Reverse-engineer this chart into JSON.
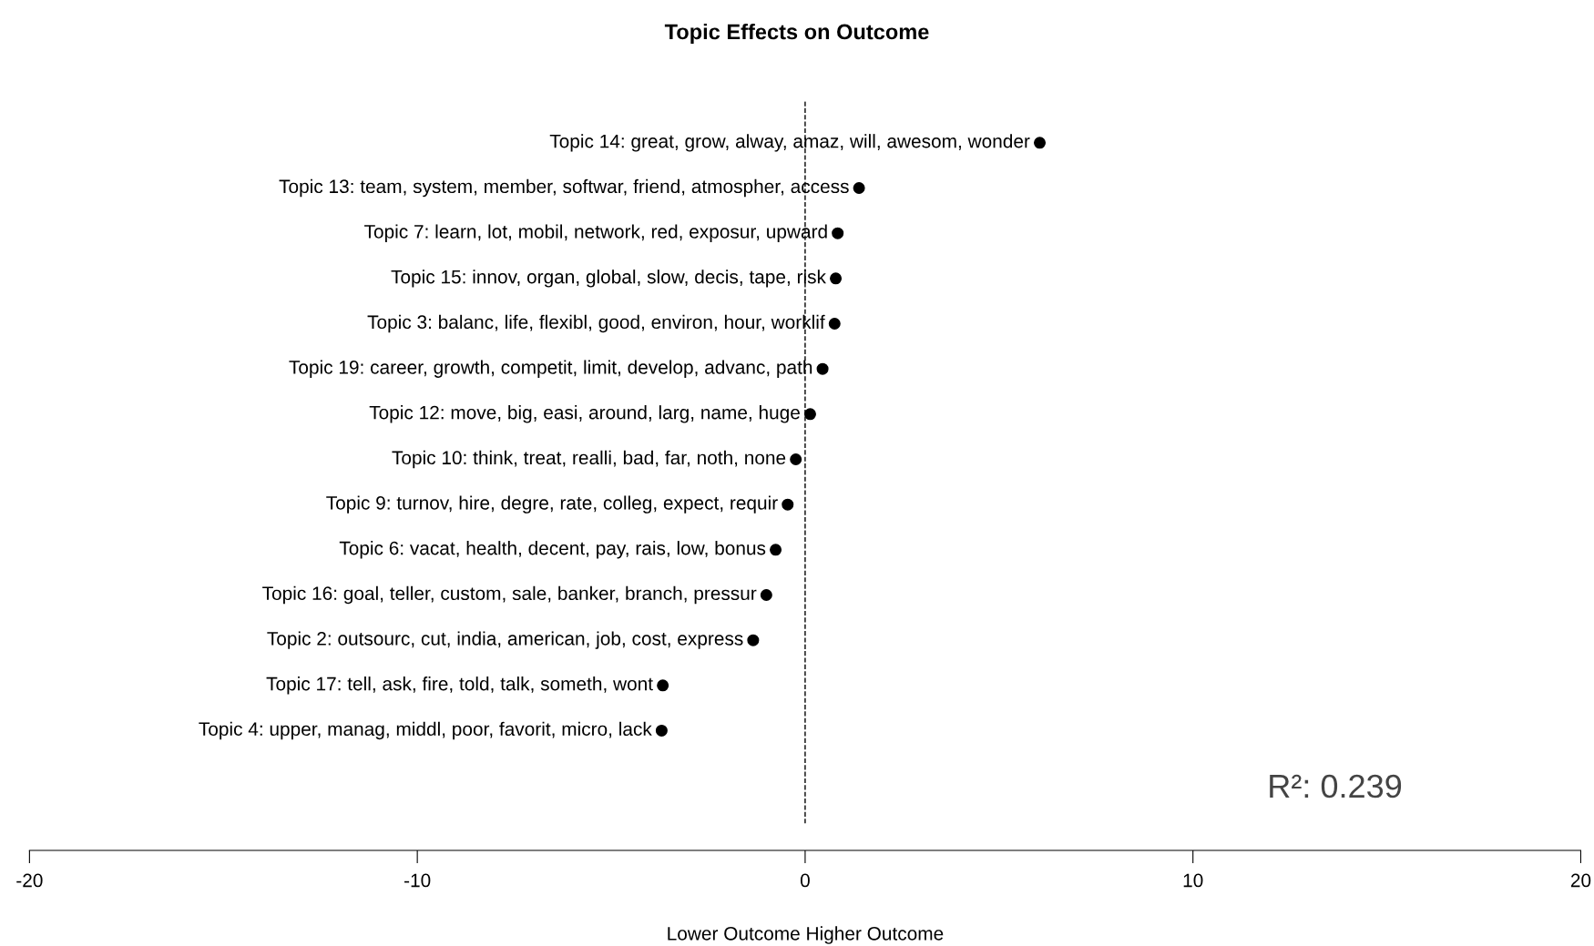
{
  "chart_data": {
    "type": "scatter",
    "orientation": "horizontal",
    "title": "Topic Effects on Outcome",
    "xlabel": "Lower Outcome Higher Outcome",
    "categories": [
      "Topic 14: great, grow, alway, amaz, will, awesom, wonder",
      "Topic 13: team, system, member, softwar, friend, atmospher, access",
      "Topic 7: learn, lot, mobil, network, red, exposur, upward",
      "Topic 15: innov, organ, global, slow, decis, tape, risk",
      "Topic 3: balanc, life, flexibl, good, environ, hour, worklif",
      "Topic 19: career, growth, competit, limit, develop, advanc, path",
      "Topic 12: move, big, easi, around, larg, name, huge",
      "Topic 10: think, treat, realli, bad, far, noth, none",
      "Topic 9: turnov, hire, degre, rate, colleg, expect, requir",
      "Topic 6: vacat, health, decent, pay, rais, low, bonus",
      "Topic 16: goal, teller, custom, sale, banker, branch, pressur",
      "Topic 2: outsourc, cut, india, american, job, cost, express",
      "Topic 17: tell, ask, fire, told, talk, someth, wont",
      "Topic 4: upper, manag, middl, poor, favorit, micro, lack"
    ],
    "values": [
      6.05,
      1.39,
      0.84,
      0.79,
      0.76,
      0.45,
      0.13,
      -0.24,
      -0.45,
      -0.76,
      -1.0,
      -1.34,
      -3.67,
      -3.7
    ],
    "color": "#000000",
    "marker": "circle",
    "xlim": [
      -20,
      20
    ],
    "xticks": [
      -20,
      -10,
      0,
      10,
      20
    ],
    "ref_lines": [
      {
        "axis": "x",
        "value": 0,
        "line_style": "dashed",
        "color": "#000000"
      }
    ],
    "annotations": [
      "R²: 0.239"
    ],
    "grid": false,
    "legend": false
  }
}
